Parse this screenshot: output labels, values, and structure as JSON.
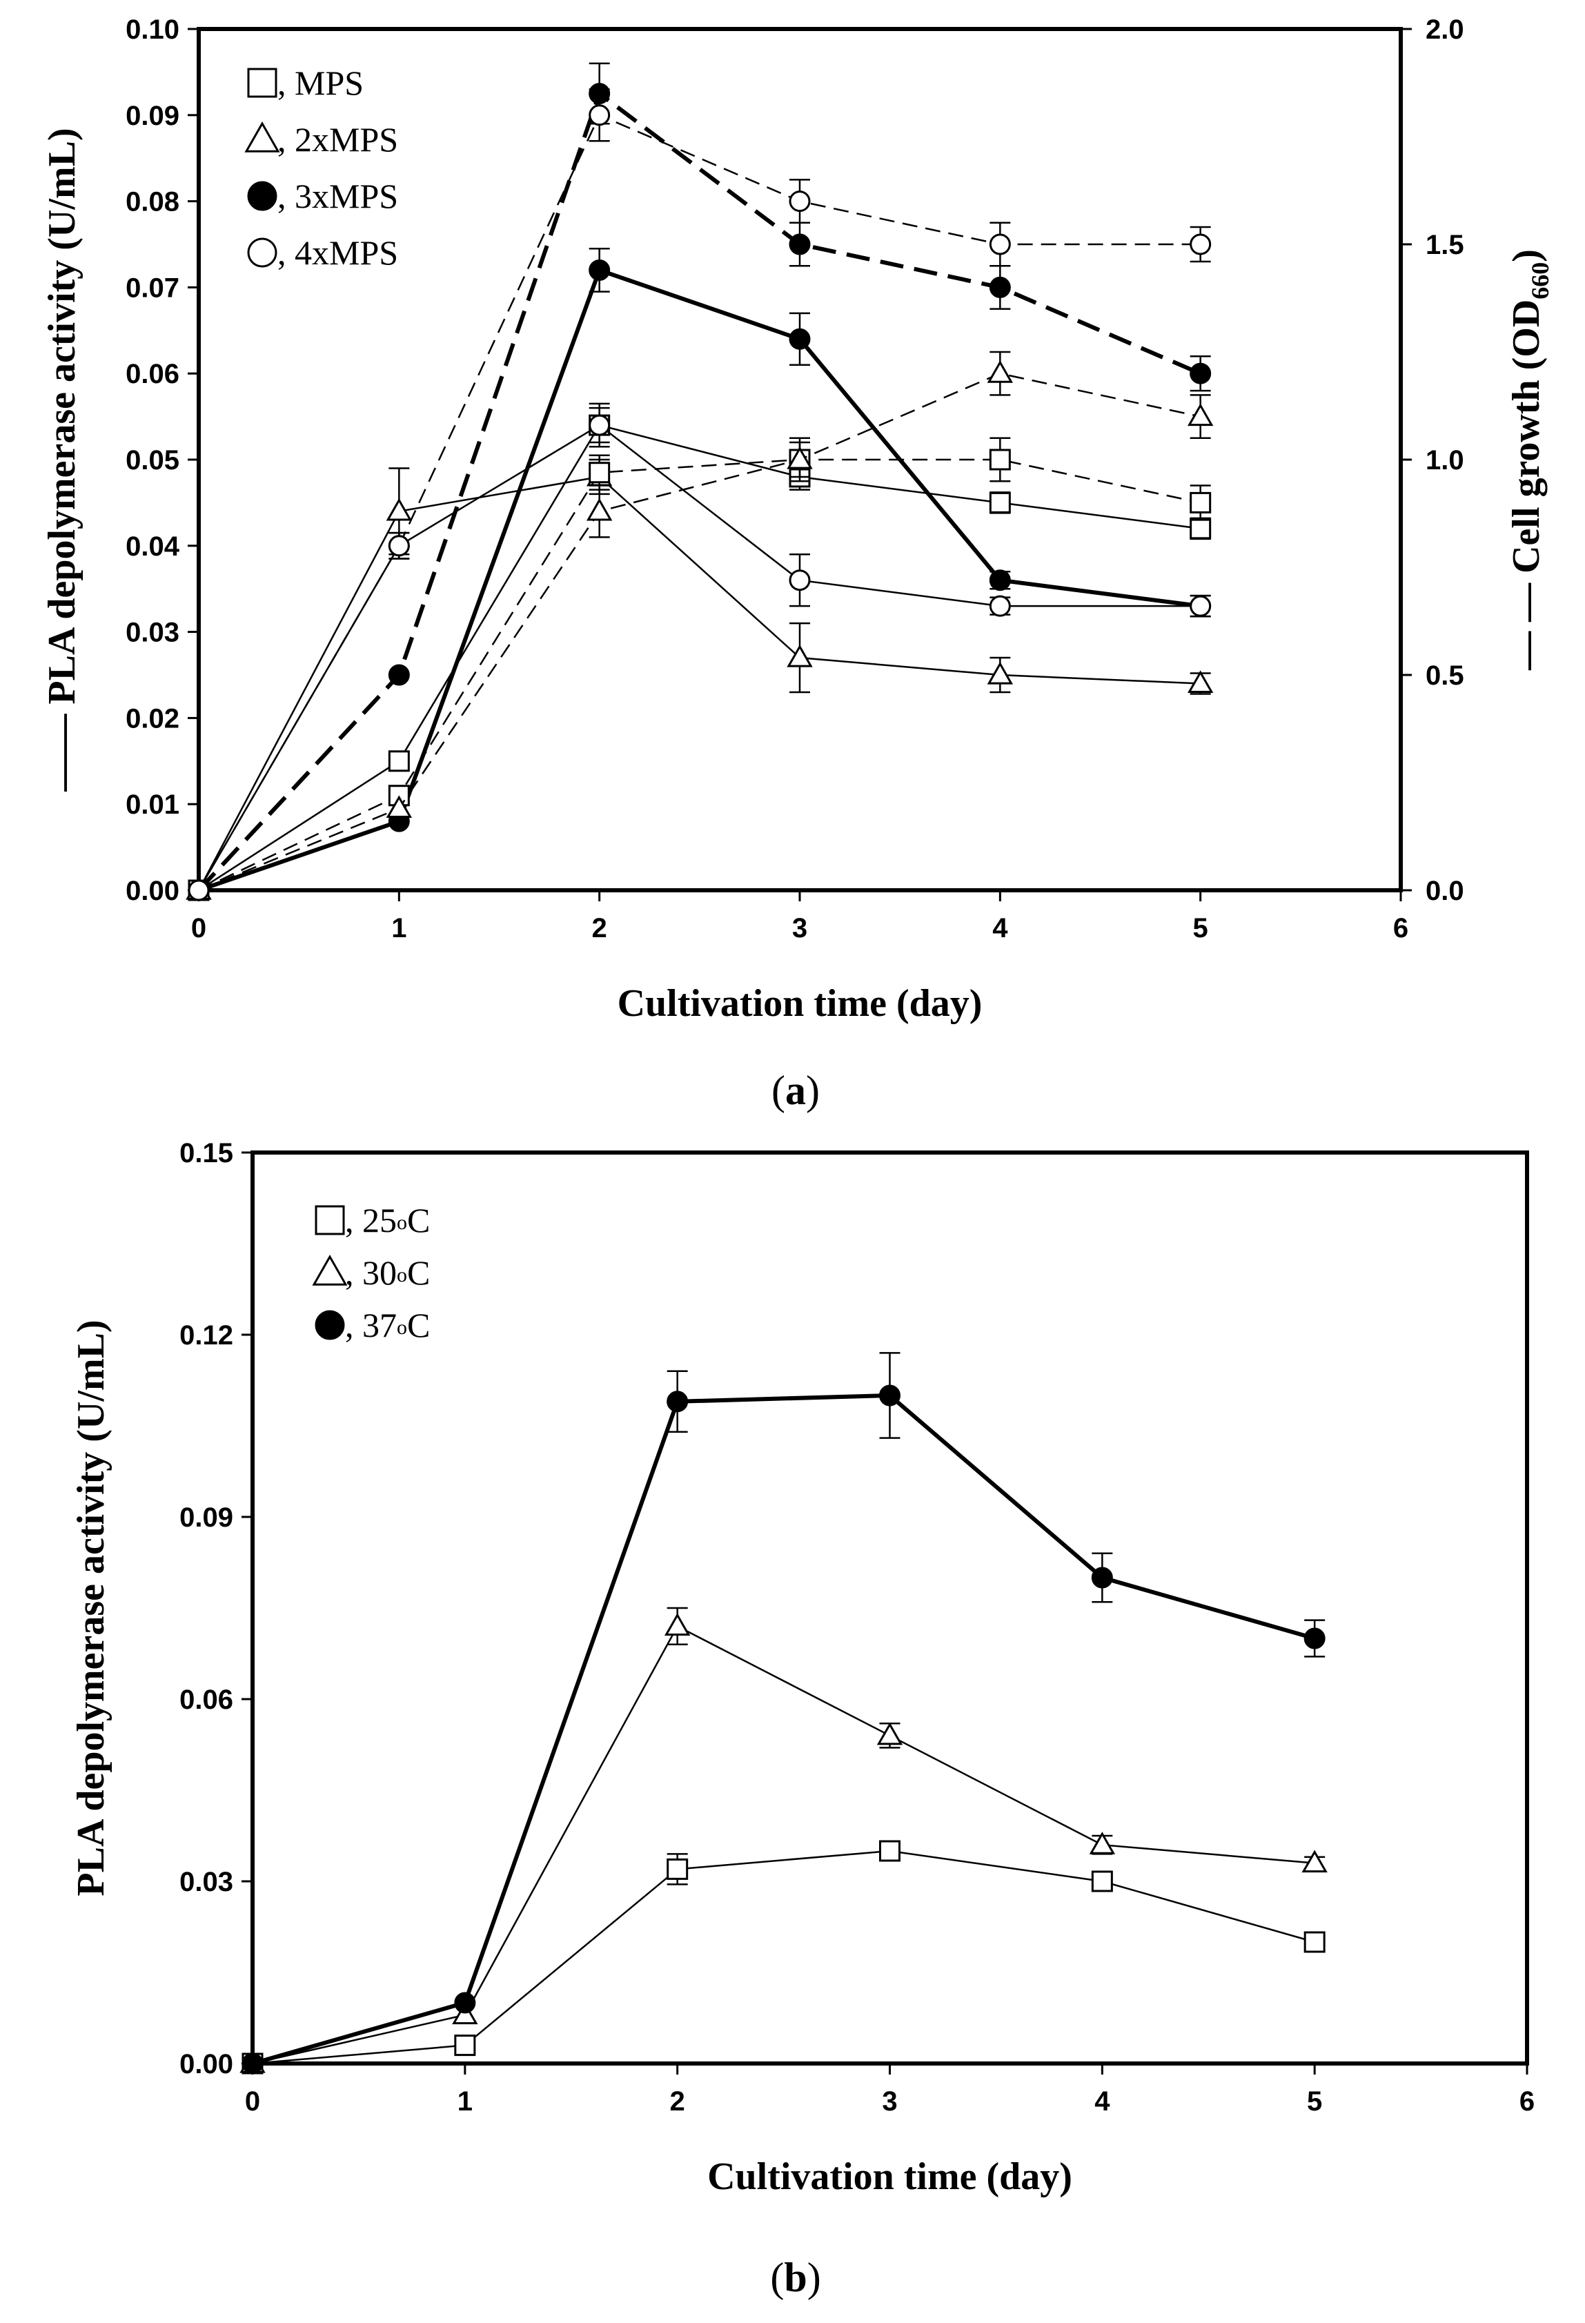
{
  "chart_data": [
    {
      "type": "line",
      "panel": "(a)",
      "panel_label_parts": [
        "(",
        "a",
        ")"
      ],
      "xlabel": "Cultivation time (day)",
      "ylabel": "PLA depolymerase activity (U/mL)",
      "ylabel_marker": "——",
      "y2label_main": "Cell growth (OD",
      "y2label_sub": "660",
      "y2label_close": ")",
      "y2label_marker": "— —",
      "xlim": [
        0,
        6
      ],
      "ylim": [
        0,
        0.1
      ],
      "y2lim": [
        0,
        2.0
      ],
      "xticks": [
        "0",
        "1",
        "2",
        "3",
        "4",
        "5",
        "6"
      ],
      "yticks": [
        "0.00",
        "0.01",
        "0.02",
        "0.03",
        "0.04",
        "0.05",
        "0.06",
        "0.07",
        "0.08",
        "0.09",
        "0.10"
      ],
      "y2ticks": [
        "0.0",
        "0.5",
        "1.0",
        "1.5",
        "2.0"
      ],
      "legend": [
        {
          "marker": "square",
          "label": ", MPS"
        },
        {
          "marker": "triangle",
          "label": ", 2xMPS"
        },
        {
          "marker": "filled-circle",
          "label": ", 3xMPS"
        },
        {
          "marker": "circle",
          "label": ", 4xMPS"
        }
      ],
      "series": [
        {
          "name": "MPS activity",
          "marker": "square",
          "style": "solid",
          "weight": "thin",
          "axis": "y",
          "x": [
            0,
            1,
            2,
            3,
            4,
            5
          ],
          "y": [
            0,
            0.015,
            0.054,
            0.048,
            0.045,
            0.042
          ],
          "err": [
            0,
            0,
            0.002,
            0.0015,
            0.0012,
            0.0012
          ]
        },
        {
          "name": "2xMPS activity",
          "marker": "triangle",
          "style": "solid",
          "weight": "thin",
          "axis": "y",
          "x": [
            0,
            1,
            2,
            3,
            4,
            5
          ],
          "y": [
            0,
            0.044,
            0.048,
            0.027,
            0.025,
            0.024
          ],
          "err": [
            0,
            0.005,
            0.002,
            0.004,
            0.002,
            0.0012
          ]
        },
        {
          "name": "3xMPS activity",
          "marker": "filled-circle",
          "style": "solid",
          "weight": "thick",
          "axis": "y",
          "x": [
            0,
            1,
            2,
            3,
            4,
            5
          ],
          "y": [
            0,
            0.008,
            0.072,
            0.064,
            0.036,
            0.033
          ],
          "err": [
            0,
            0,
            0.0025,
            0.003,
            0.001,
            0.0012
          ]
        },
        {
          "name": "4xMPS activity",
          "marker": "circle",
          "style": "solid",
          "weight": "thin",
          "axis": "y",
          "x": [
            0,
            1,
            2,
            3,
            4,
            5
          ],
          "y": [
            0,
            0.04,
            0.054,
            0.036,
            0.033,
            0.033
          ],
          "err": [
            0,
            0.0015,
            0.0025,
            0.003,
            0.001,
            0.0012
          ]
        },
        {
          "name": "MPS growth",
          "marker": "square",
          "style": "dashed",
          "weight": "thin",
          "axis": "y2",
          "x": [
            0,
            1,
            2,
            3,
            4,
            5
          ],
          "y": [
            0,
            0.22,
            0.97,
            1.0,
            1.0,
            0.9
          ],
          "err": [
            0,
            0,
            0.04,
            0.05,
            0.05,
            0.04
          ]
        },
        {
          "name": "2xMPS growth",
          "marker": "triangle",
          "style": "dashed",
          "weight": "thin",
          "axis": "y2",
          "x": [
            0,
            1,
            2,
            3,
            4,
            5
          ],
          "y": [
            0,
            0.19,
            0.88,
            1.0,
            1.2,
            1.1
          ],
          "err": [
            0,
            0,
            0.06,
            0.04,
            0.05,
            0.05
          ]
        },
        {
          "name": "3xMPS growth",
          "marker": "filled-circle",
          "style": "dashed",
          "weight": "thick",
          "axis": "y2",
          "x": [
            0,
            1,
            2,
            3,
            4,
            5
          ],
          "y": [
            0,
            0.5,
            1.85,
            1.5,
            1.4,
            1.2
          ],
          "err": [
            0,
            0,
            0.07,
            0.05,
            0.05,
            0.04
          ]
        },
        {
          "name": "4xMPS growth",
          "marker": "circle",
          "style": "dashed",
          "weight": "thin",
          "axis": "y2",
          "x": [
            0,
            1,
            2,
            3,
            4,
            5
          ],
          "y": [
            0,
            0.8,
            1.8,
            1.6,
            1.5,
            1.5
          ],
          "err": [
            0,
            0.03,
            0.06,
            0.05,
            0.05,
            0.04
          ]
        }
      ]
    },
    {
      "type": "line",
      "panel": "(b)",
      "panel_label_parts": [
        "(",
        "b",
        ")"
      ],
      "xlabel": "Cultivation time (day)",
      "ylabel": "PLA depolymerase activity (U/mL)",
      "xlim": [
        0,
        6
      ],
      "ylim": [
        0,
        0.15
      ],
      "xticks": [
        "0",
        "1",
        "2",
        "3",
        "4",
        "5",
        "6"
      ],
      "yticks": [
        "0.00",
        "0.03",
        "0.06",
        "0.09",
        "0.12",
        "0.15"
      ],
      "legend": [
        {
          "marker": "square",
          "label": ", 25",
          "deg": "o",
          "unit": "C"
        },
        {
          "marker": "triangle",
          "label": ", 30",
          "deg": "o",
          "unit": "C"
        },
        {
          "marker": "filled-circle",
          "label": ", 37",
          "deg": "o",
          "unit": "C"
        }
      ],
      "series": [
        {
          "name": "25°C",
          "marker": "square",
          "style": "solid",
          "weight": "thin",
          "x": [
            0,
            1,
            2,
            3,
            4,
            5
          ],
          "y": [
            0,
            0.003,
            0.032,
            0.035,
            0.03,
            0.02
          ],
          "err": [
            0,
            0,
            0.0025,
            0.0012,
            0.0012,
            0.0012
          ]
        },
        {
          "name": "30°C",
          "marker": "triangle",
          "style": "solid",
          "weight": "thin",
          "x": [
            0,
            1,
            2,
            3,
            4,
            5
          ],
          "y": [
            0,
            0.008,
            0.072,
            0.054,
            0.036,
            0.033
          ],
          "err": [
            0,
            0,
            0.003,
            0.002,
            0.0015,
            0.001
          ]
        },
        {
          "name": "37°C",
          "marker": "filled-circle",
          "style": "solid",
          "weight": "thick",
          "x": [
            0,
            1,
            2,
            3,
            4,
            5
          ],
          "y": [
            0,
            0.01,
            0.109,
            0.11,
            0.08,
            0.07
          ],
          "err": [
            0,
            0,
            0.005,
            0.007,
            0.004,
            0.003
          ]
        }
      ]
    }
  ]
}
